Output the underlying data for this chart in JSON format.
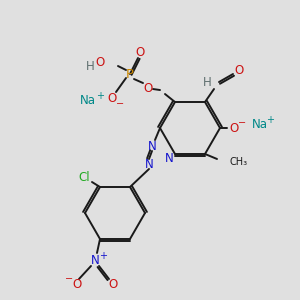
{
  "bg_color": "#e0e0e0",
  "bond_color": "#1a1a1a",
  "bond_width": 1.4,
  "colors": {
    "C": "#1a1a1a",
    "N": "#1414cc",
    "O": "#cc1414",
    "P": "#cc8800",
    "Na": "#008888",
    "Cl": "#22aa22",
    "H": "#607070",
    "charge": "#1414cc"
  },
  "font_size": 8.5,
  "fig_size": [
    3.0,
    3.0
  ],
  "dpi": 100
}
